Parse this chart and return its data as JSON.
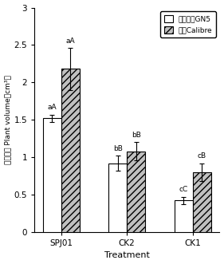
{
  "categories": [
    "SPJ01",
    "CK2",
    "CK1"
  ],
  "series1_label": "紫花苹蓿GN5",
  "series2_label": "燕麦Calibre",
  "series1_values": [
    1.52,
    0.92,
    0.42
  ],
  "series2_values": [
    2.18,
    1.08,
    0.8
  ],
  "series1_errors": [
    0.05,
    0.1,
    0.05
  ],
  "series2_errors": [
    0.28,
    0.12,
    0.12
  ],
  "series1_labels": [
    "aA",
    "bB",
    "cC"
  ],
  "series2_labels": [
    "aA",
    "bB",
    "cB"
  ],
  "bar_width": 0.28,
  "bar_color1": "white",
  "bar_color2": "#c0c0c0",
  "bar_edgecolor": "black",
  "hatch2": "////",
  "ylim": [
    0,
    3.0
  ],
  "yticks": [
    0,
    0.5,
    1.0,
    1.5,
    2.0,
    2.5,
    3.0
  ],
  "xlabel": "Treatment",
  "ylabel_chinese": "植体体积",
  "ylabel_english": "Plant volume",
  "ylabel_units": "（cm³）",
  "figsize": [
    2.81,
    3.31
  ],
  "dpi": 100
}
